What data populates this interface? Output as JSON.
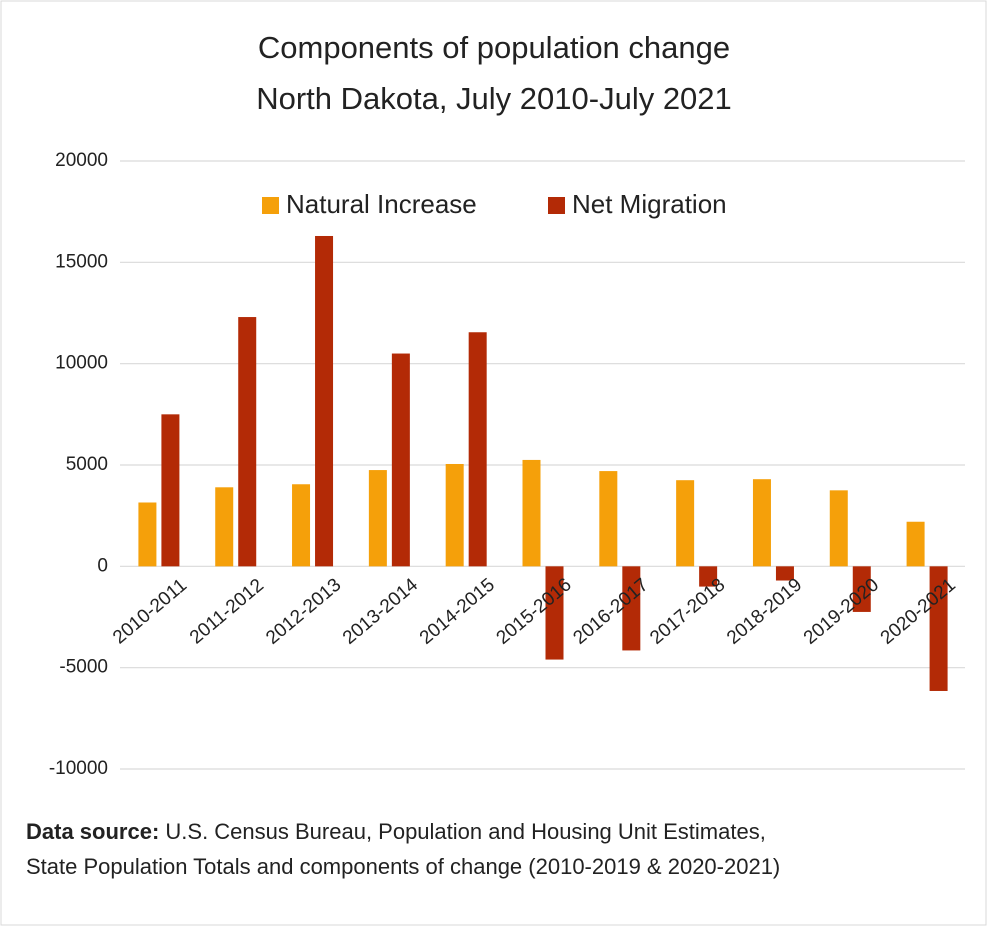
{
  "chart_data": {
    "type": "bar",
    "title": [
      "Components of population change",
      "North Dakota, July 2010-July 2021"
    ],
    "categories": [
      "2010-2011",
      "2011-2012",
      "2012-2013",
      "2013-2014",
      "2014-2015",
      "2015-2016",
      "2016-2017",
      "2017-2018",
      "2018-2019",
      "2019-2020",
      "2020-2021"
    ],
    "series": [
      {
        "name": "Natural Increase",
        "color": "#f5a00a",
        "values": [
          3150,
          3900,
          4050,
          4750,
          5050,
          5250,
          4700,
          4250,
          4300,
          3750,
          2200
        ]
      },
      {
        "name": "Net Migration",
        "color": "#b32a06",
        "values": [
          7500,
          12300,
          16300,
          10500,
          11550,
          -4600,
          -4150,
          -1000,
          -700,
          -2250,
          -6150
        ]
      }
    ],
    "ylim": [
      -10000,
      20000
    ],
    "yticks": [
      -10000,
      -5000,
      0,
      5000,
      10000,
      15000,
      20000
    ],
    "grid": true,
    "legend": "top",
    "source": {
      "label": "Data source:",
      "lines": [
        " U.S. Census Bureau, Population and Housing Unit Estimates,",
        "State Population Totals and components of change (2010-2019 & 2020-2021)"
      ]
    }
  }
}
